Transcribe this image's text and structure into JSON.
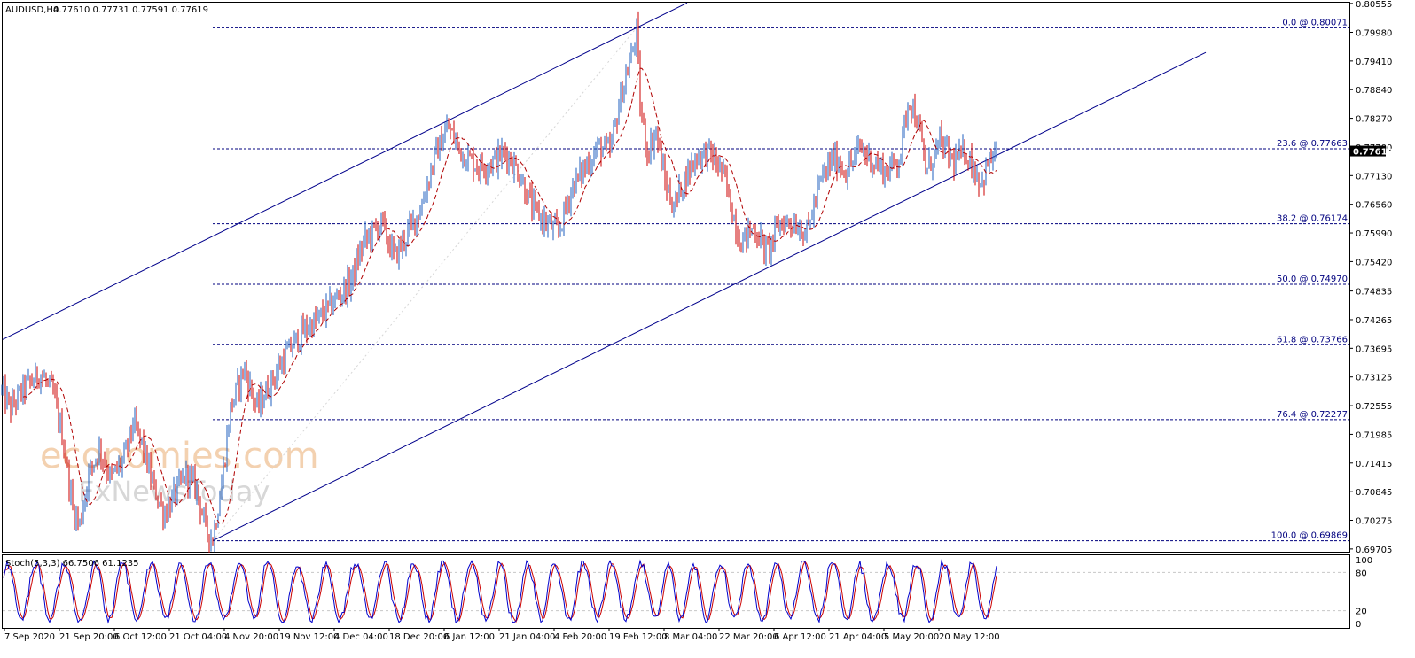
{
  "header": {
    "symbol": "AUDUSD,H4",
    "ohlc": "0.77610 0.77731 0.77591 0.77619"
  },
  "watermark": {
    "line1": "economies.com",
    "line2": "FxNewsToday"
  },
  "colors": {
    "bull_candle": "#1f5fbf",
    "bear_candle": "#cc0000",
    "moving_average": "#b00000",
    "channel": "#00008b",
    "fib_line": "#00007f",
    "price_tag_bg": "#000000",
    "stoch_main": "#0000cc",
    "stoch_signal": "#cc0000"
  },
  "chart_data": {
    "type": "candlestick",
    "price_axis": {
      "ticks": [
        "0.80555",
        "0.79980",
        "0.79410",
        "0.78840",
        "0.78270",
        "0.77700",
        "0.77130",
        "0.76560",
        "0.75990",
        "0.75420",
        "0.74835",
        "0.74265",
        "0.73695",
        "0.73125",
        "0.72555",
        "0.71985",
        "0.71415",
        "0.70845",
        "0.70275",
        "0.69705"
      ],
      "range": [
        0.6965,
        0.8057
      ],
      "current_price": "0.77619"
    },
    "time_axis": {
      "ticks": [
        "7 Sep 2020",
        "21 Sep 20:00",
        "6 Oct 12:00",
        "21 Oct 04:00",
        "4 Nov 20:00",
        "19 Nov 12:00",
        "4 Dec 04:00",
        "18 Dec 20:00",
        "6 Jan 12:00",
        "21 Jan 04:00",
        "4 Feb 20:00",
        "19 Feb 12:00",
        "8 Mar 04:00",
        "22 Mar 20:00",
        "6 Apr 12:00",
        "21 Apr 04:00",
        "5 May 20:00",
        "20 May 12:00"
      ]
    },
    "price_path": [
      [
        0,
        0.729
      ],
      [
        12,
        0.725
      ],
      [
        25,
        0.7285
      ],
      [
        45,
        0.732
      ],
      [
        60,
        0.728
      ],
      [
        72,
        0.718
      ],
      [
        82,
        0.705
      ],
      [
        90,
        0.702
      ],
      [
        100,
        0.712
      ],
      [
        112,
        0.717
      ],
      [
        125,
        0.711
      ],
      [
        140,
        0.715
      ],
      [
        150,
        0.722
      ],
      [
        160,
        0.718
      ],
      [
        172,
        0.71
      ],
      [
        185,
        0.704
      ],
      [
        198,
        0.708
      ],
      [
        210,
        0.712
      ],
      [
        222,
        0.709
      ],
      [
        232,
        0.701
      ],
      [
        240,
        0.699
      ],
      [
        250,
        0.71
      ],
      [
        260,
        0.725
      ],
      [
        275,
        0.733
      ],
      [
        290,
        0.725
      ],
      [
        305,
        0.73
      ],
      [
        320,
        0.735
      ],
      [
        340,
        0.74
      ],
      [
        360,
        0.743
      ],
      [
        380,
        0.747
      ],
      [
        395,
        0.75
      ],
      [
        410,
        0.758
      ],
      [
        430,
        0.762
      ],
      [
        445,
        0.755
      ],
      [
        460,
        0.76
      ],
      [
        475,
        0.765
      ],
      [
        490,
        0.775
      ],
      [
        505,
        0.781
      ],
      [
        520,
        0.776
      ],
      [
        540,
        0.773
      ],
      [
        555,
        0.774
      ],
      [
        570,
        0.776
      ],
      [
        585,
        0.772
      ],
      [
        600,
        0.765
      ],
      [
        615,
        0.762
      ],
      [
        630,
        0.76
      ],
      [
        645,
        0.769
      ],
      [
        660,
        0.773
      ],
      [
        675,
        0.777
      ],
      [
        688,
        0.776
      ],
      [
        700,
        0.787
      ],
      [
        712,
        0.795
      ],
      [
        718,
        0.8
      ],
      [
        722,
        0.785
      ],
      [
        730,
        0.776
      ],
      [
        740,
        0.78
      ],
      [
        750,
        0.77
      ],
      [
        760,
        0.765
      ],
      [
        770,
        0.77
      ],
      [
        785,
        0.775
      ],
      [
        800,
        0.776
      ],
      [
        815,
        0.772
      ],
      [
        825,
        0.765
      ],
      [
        835,
        0.758
      ],
      [
        850,
        0.761
      ],
      [
        865,
        0.756
      ],
      [
        880,
        0.762
      ],
      [
        895,
        0.762
      ],
      [
        910,
        0.76
      ],
      [
        925,
        0.77
      ],
      [
        940,
        0.775
      ],
      [
        955,
        0.772
      ],
      [
        970,
        0.777
      ],
      [
        985,
        0.774
      ],
      [
        1000,
        0.772
      ],
      [
        1015,
        0.775
      ],
      [
        1025,
        0.787
      ],
      [
        1035,
        0.782
      ],
      [
        1045,
        0.772
      ],
      [
        1060,
        0.778
      ],
      [
        1075,
        0.774
      ],
      [
        1090,
        0.776
      ],
      [
        1100,
        0.772
      ],
      [
        1108,
        0.77
      ],
      [
        1115,
        0.774
      ],
      [
        1125,
        0.776
      ]
    ],
    "fibonacci": [
      {
        "label": "0.0 @ 0.80071",
        "price": 0.80071
      },
      {
        "label": "23.6 @ 0.77663",
        "price": 0.77663
      },
      {
        "label": "38.2 @ 0.76174",
        "price": 0.76174
      },
      {
        "label": "50.0 @ 0.74970",
        "price": 0.7497
      },
      {
        "label": "61.8 @ 0.73766",
        "price": 0.73766
      },
      {
        "label": "76.4 @ 0.72277",
        "price": 0.72277
      },
      {
        "label": "100.0 @ 0.69869",
        "price": 0.69869
      }
    ],
    "stochastic": {
      "label": "Stoch(5,3,3) 66.7506 61.1235",
      "ticks": [
        "100",
        "80",
        "20",
        "0"
      ]
    }
  }
}
